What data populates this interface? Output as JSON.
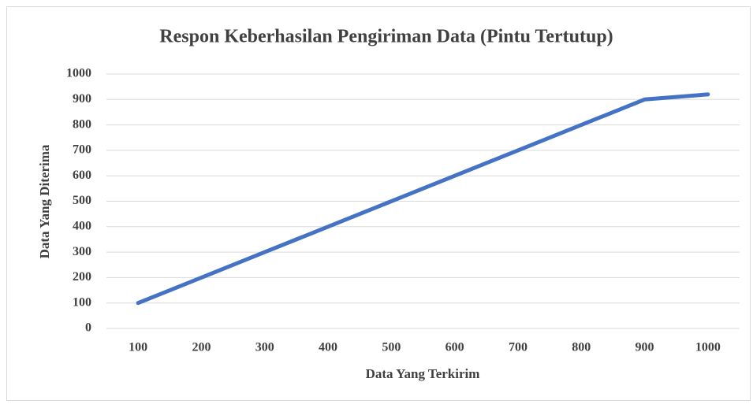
{
  "chart_data": {
    "type": "line",
    "title": "Respon Keberhasilan Pengiriman Data (Pintu Tertutup)",
    "x_label": "Data Yang Terkirim",
    "y_label": "Data Yang Diterima",
    "categories": [
      "100",
      "200",
      "300",
      "400",
      "500",
      "600",
      "700",
      "800",
      "900",
      "1000"
    ],
    "series": [
      {
        "name": "Data Yang Diterima",
        "color": "#4472c4",
        "values": [
          100,
          200,
          300,
          400,
          500,
          600,
          700,
          800,
          900,
          920
        ]
      }
    ],
    "ylim": [
      0,
      1000
    ],
    "yticks": [
      0,
      100,
      200,
      300,
      400,
      500,
      600,
      700,
      800,
      900,
      1000
    ],
    "grid": true
  }
}
